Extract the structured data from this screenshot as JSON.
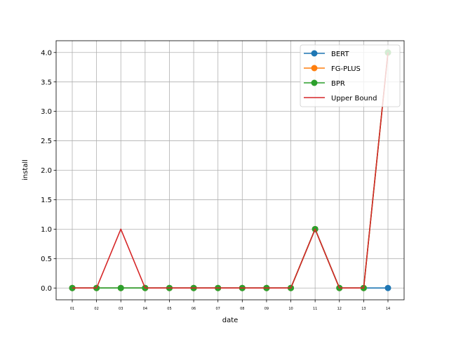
{
  "chart_data": {
    "type": "line",
    "xlabel": "date",
    "ylabel": "install",
    "categories": [
      "01",
      "02",
      "03",
      "04",
      "05",
      "06",
      "07",
      "08",
      "09",
      "10",
      "11",
      "12",
      "13",
      "14"
    ],
    "ylim": [
      -0.2,
      4.2
    ],
    "yticks": [
      "0.0",
      "0.5",
      "1.0",
      "1.5",
      "2.0",
      "2.5",
      "3.0",
      "3.5",
      "4.0"
    ],
    "ytick_values": [
      0,
      0.5,
      1.0,
      1.5,
      2.0,
      2.5,
      3.0,
      3.5,
      4.0
    ],
    "grid": true,
    "legend_position": "top-right",
    "series": [
      {
        "name": "BERT",
        "color": "#1f77b4",
        "marker": true,
        "values": [
          0,
          0,
          0,
          0,
          0,
          0,
          0,
          0,
          0,
          0,
          1,
          0,
          0,
          0
        ]
      },
      {
        "name": "FG-PLUS",
        "color": "#ff7f0e",
        "marker": true,
        "values": [
          0,
          0,
          0,
          0,
          0,
          0,
          0,
          0,
          0,
          0,
          1,
          0,
          0,
          4
        ]
      },
      {
        "name": "BPR",
        "color": "#2ca02c",
        "marker": true,
        "values": [
          0,
          0,
          0,
          0,
          0,
          0,
          0,
          0,
          0,
          0,
          1,
          0,
          0,
          4
        ]
      },
      {
        "name": "Upper Bound",
        "color": "#d62728",
        "marker": false,
        "values": [
          0,
          0,
          1,
          0,
          0,
          0,
          0,
          0,
          0,
          0,
          1,
          0,
          0,
          4
        ]
      }
    ]
  }
}
